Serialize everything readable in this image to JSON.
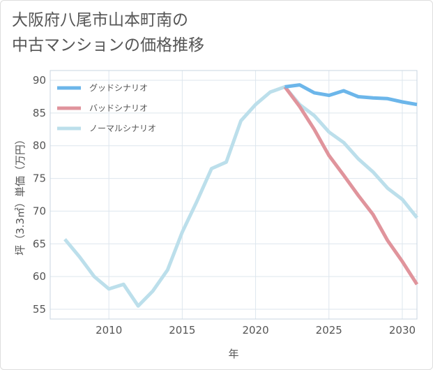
{
  "title_lines": [
    "大阪府八尾市山本町南の",
    "中古マンションの価格推移"
  ],
  "chart_data": {
    "type": "line",
    "title": "大阪府八尾市山本町南の中古マンションの価格推移",
    "xlabel": "年",
    "ylabel": "坪（3.3㎡）単価（万円）",
    "xlim": [
      2006,
      2031
    ],
    "ylim": [
      53.5,
      91.5
    ],
    "xticks": [
      2010,
      2015,
      2020,
      2025,
      2030
    ],
    "yticks": [
      55,
      60,
      65,
      70,
      75,
      80,
      85,
      90
    ],
    "grid": true,
    "legend_position": "top-left",
    "series": [
      {
        "name": "グッドシナリオ",
        "color": "#6cb6ea",
        "x": [
          2022,
          2023,
          2024,
          2025,
          2026,
          2027,
          2028,
          2029,
          2030,
          2031
        ],
        "y": [
          89.0,
          89.3,
          88.1,
          87.7,
          88.4,
          87.5,
          87.3,
          87.2,
          86.7,
          86.3
        ]
      },
      {
        "name": "バッドシナリオ",
        "color": "#e0949c",
        "x": [
          2022,
          2023,
          2024,
          2025,
          2026,
          2027,
          2028,
          2029,
          2030,
          2031
        ],
        "y": [
          89.0,
          86.0,
          82.5,
          78.5,
          75.5,
          72.4,
          69.5,
          65.5,
          62.3,
          58.8
        ]
      },
      {
        "name": "ノーマルシナリオ",
        "color": "#bcdfeb",
        "x": [
          2007,
          2008,
          2009,
          2010,
          2011,
          2012,
          2013,
          2014,
          2015,
          2016,
          2017,
          2018,
          2019,
          2020,
          2021,
          2022,
          2023,
          2024,
          2025,
          2026,
          2027,
          2028,
          2029,
          2030,
          2031
        ],
        "y": [
          65.7,
          63.0,
          60.0,
          58.1,
          58.8,
          55.5,
          57.8,
          61.0,
          66.8,
          71.5,
          76.5,
          77.5,
          83.8,
          86.3,
          88.2,
          89.0,
          86.3,
          84.6,
          82.1,
          80.5,
          78.0,
          76.0,
          73.5,
          71.8,
          69.0
        ]
      }
    ]
  }
}
